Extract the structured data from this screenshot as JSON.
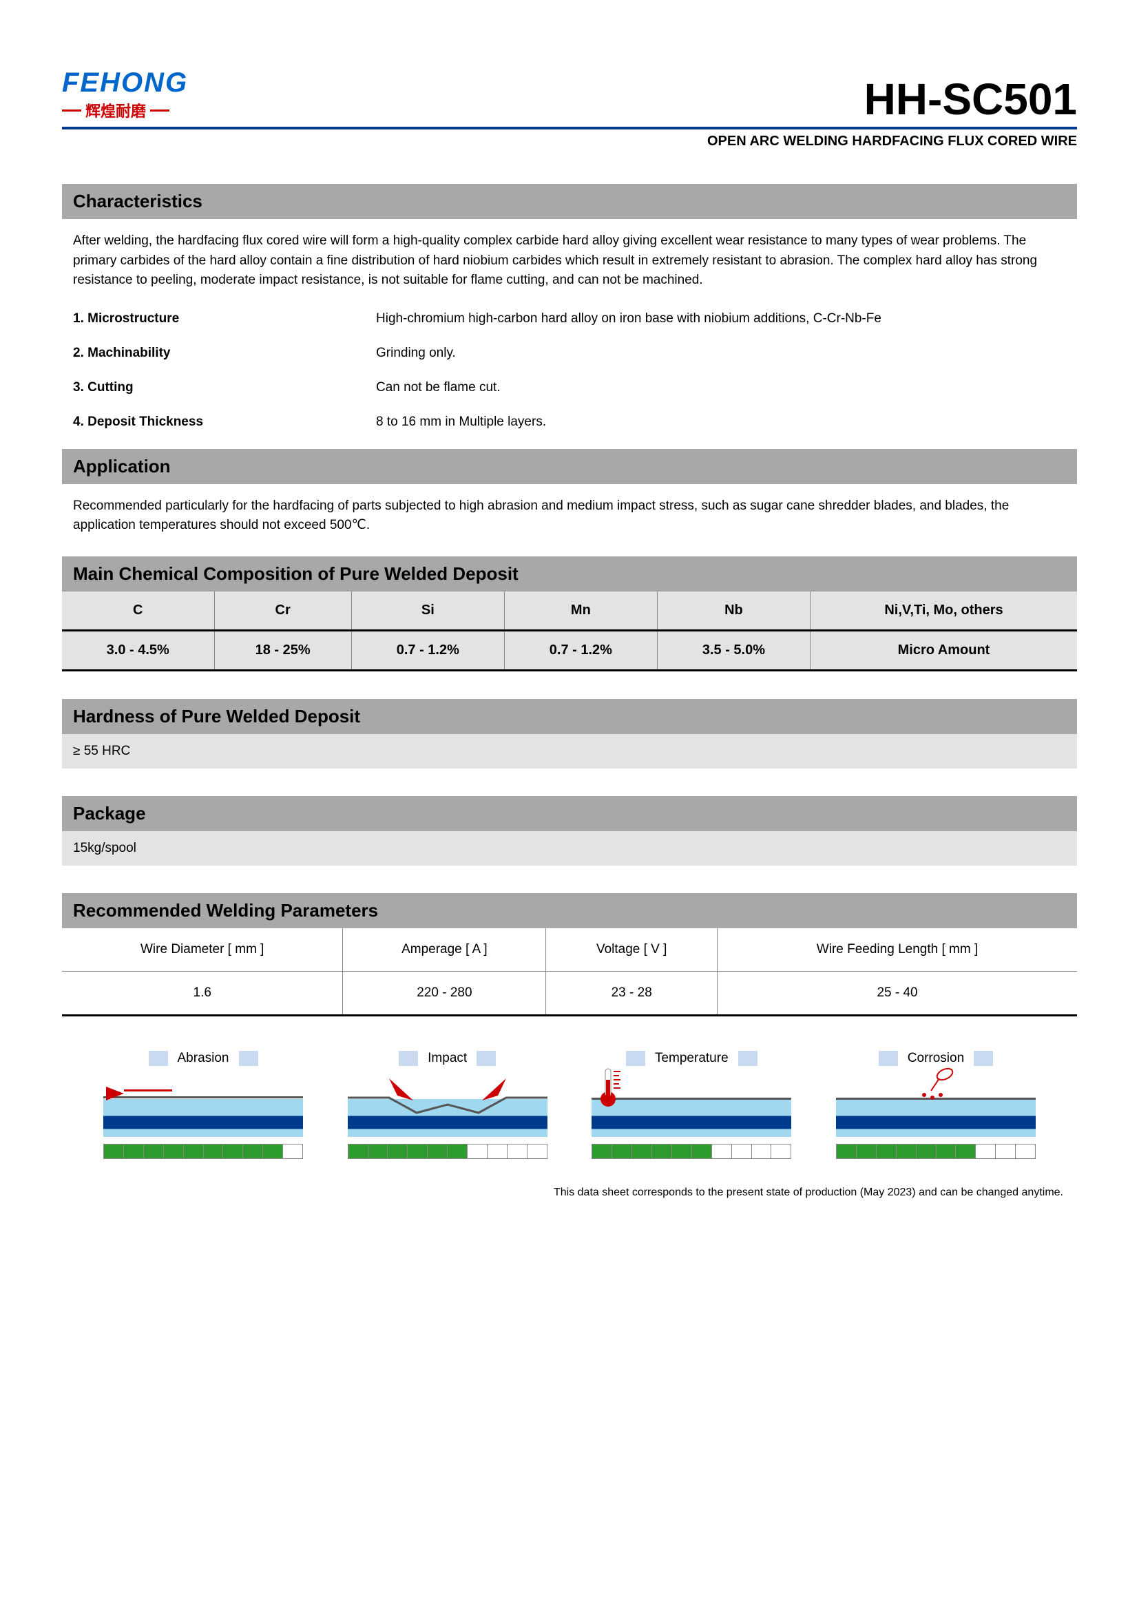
{
  "header": {
    "logo_main": "FEHONG",
    "logo_sub": "辉煌耐磨",
    "product_code": "HH-SC501",
    "subtitle": "OPEN ARC WELDING HARDFACING FLUX CORED WIRE"
  },
  "characteristics": {
    "title": "Characteristics",
    "intro": "After welding, the hardfacing flux cored wire will form a high-quality complex carbide hard alloy giving excellent wear resistance to many types of wear problems. The primary carbides of the hard alloy contain a fine distribution of hard niobium carbides which result in extremely resistant to abrasion. The complex hard alloy has strong resistance to peeling, moderate impact resistance, is not suitable for flame cutting, and can not be machined.",
    "items": [
      {
        "label": "1. Microstructure",
        "value": "High-chromium high-carbon hard alloy on iron base with niobium additions, C-Cr-Nb-Fe"
      },
      {
        "label": "2. Machinability",
        "value": "Grinding only."
      },
      {
        "label": "3. Cutting",
        "value": "Can not be flame cut."
      },
      {
        "label": "4. Deposit Thickness",
        "value": "8 to 16 mm in Multiple layers."
      }
    ]
  },
  "application": {
    "title": "Application",
    "text": "Recommended particularly for the hardfacing of parts subjected to high abrasion and medium impact stress, such as sugar cane shredder blades, and blades, the application temperatures should not exceed 500℃."
  },
  "composition": {
    "title": "Main Chemical Composition of Pure Welded  Deposit",
    "columns": [
      "C",
      "Cr",
      "Si",
      "Mn",
      "Nb",
      "Ni,V,Ti, Mo, others"
    ],
    "values": [
      "3.0 - 4.5%",
      "18 - 25%",
      "0.7 - 1.2%",
      "0.7 - 1.2%",
      "3.5 - 5.0%",
      "Micro Amount"
    ]
  },
  "hardness": {
    "title": "Hardness of Pure Welded Deposit",
    "value": "≥ 55 HRC"
  },
  "package": {
    "title": "Package",
    "value": "15kg/spool"
  },
  "welding_params": {
    "title": "Recommended Welding Parameters",
    "columns": [
      "Wire Diameter [ mm ]",
      "Amperage [ A ]",
      "Voltage [ V ]",
      "Wire Feeding Length [ mm ]"
    ],
    "values": [
      "1.6",
      "220 - 280",
      "23 - 28",
      "25 - 40"
    ]
  },
  "infographics": {
    "total_cells": 10,
    "items": [
      {
        "label": "Abrasion",
        "rating": 9,
        "type": "abrasion"
      },
      {
        "label": "Impact",
        "rating": 6,
        "type": "impact"
      },
      {
        "label": "Temperature",
        "rating": 6,
        "type": "temperature"
      },
      {
        "label": "Corrosion",
        "rating": 7,
        "type": "corrosion"
      }
    ],
    "colors": {
      "fill": "#2e9b2e",
      "title_box": "#c9d9ef",
      "layer_top": "#ffffff",
      "layer_light": "#a0d8ef",
      "layer_dark": "#003a8c",
      "arrow": "#cc0000",
      "thermo": "#cc0000"
    }
  },
  "footer": "This data sheet corresponds to the present state of production (May 2023) and can be changed anytime."
}
